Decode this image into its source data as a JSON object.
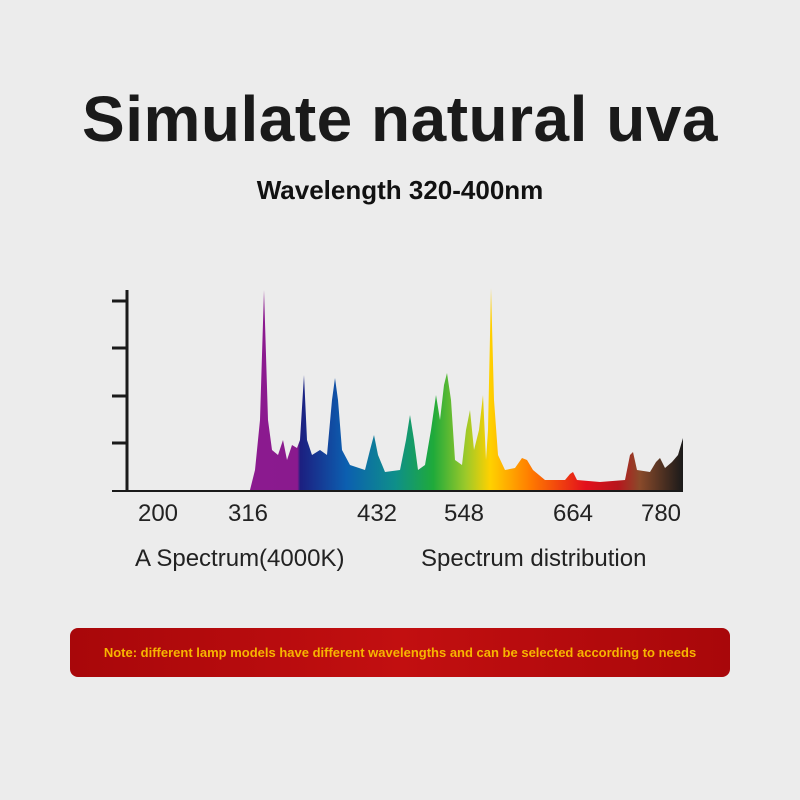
{
  "header": {
    "title": "Simulate natural uva",
    "subtitle": "Wavelength 320-400nm"
  },
  "spectrum": {
    "xticks": [
      200,
      316,
      432,
      548,
      664,
      780
    ],
    "caption_left": "A Spectrum(4000K)",
    "caption_right": "Spectrum distribution"
  },
  "note": "Note: different lamp models have different wavelengths and can be selected according to needs"
}
